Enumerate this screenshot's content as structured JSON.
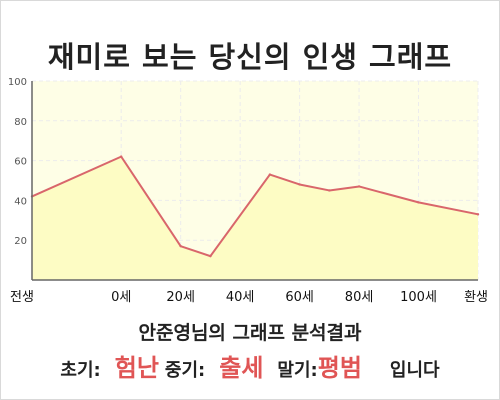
{
  "title": "재미로 보는 당신의 인생 그래프",
  "subtitle": "안준영님의 그래프 분석결과",
  "summary": {
    "early_label": "초기:",
    "early_value": "험난",
    "middle_label": "중기:",
    "middle_value": "출세",
    "late_label": "말기:",
    "late_value": "평범",
    "ending": "입니다"
  },
  "colors": {
    "line": "#d9666b",
    "fill": "#fdfcc4",
    "plot_bg": "#fefee6",
    "grid": "#ececec",
    "accent": "#e05555"
  },
  "chart_data": {
    "type": "area",
    "title": "재미로 보는 당신의 인생 그래프",
    "xlabel": "",
    "ylabel": "",
    "x_ticks": [
      "전생",
      "0세",
      "20세",
      "40세",
      "60세",
      "80세",
      "100세",
      "환생"
    ],
    "x_tick_positions": [
      -30,
      0,
      20,
      40,
      60,
      80,
      100,
      120
    ],
    "y_ticks": [
      20,
      40,
      60,
      80,
      100
    ],
    "xlim": [
      -30,
      120
    ],
    "ylim": [
      0,
      100
    ],
    "grid": true,
    "series": [
      {
        "x": [
          -30,
          0,
          20,
          30,
          50,
          60,
          70,
          80,
          100,
          120
        ],
        "y": [
          42,
          62,
          17,
          12,
          53,
          48,
          45,
          47,
          39,
          33
        ]
      }
    ]
  }
}
